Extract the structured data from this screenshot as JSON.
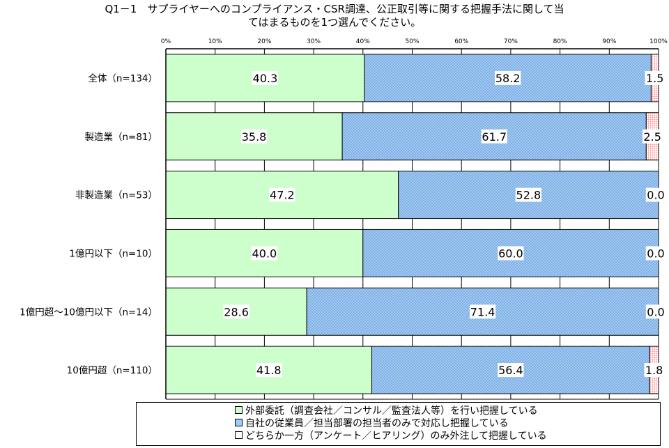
{
  "title_lines": [
    "Q1－1　サプライヤーへのコンプライアンス・CSR調達、公正取引等に関する把握手法に関して当",
    "てはまるものを1つ選んでください。"
  ],
  "chart_data": {
    "type": "bar",
    "orientation": "horizontal",
    "stacked": "percent",
    "categories": [
      "全体（n=134）",
      "製造業（n=81）",
      "非製造業（n=53）",
      "1億円以下（n=10）",
      "1億円超～10億円以下（n=14）",
      "10億円超（n=110）"
    ],
    "series": [
      {
        "name": "外部委託（調査会社／コンサル／監査法人等）を行い把握している",
        "values": [
          40.3,
          35.8,
          47.2,
          40.0,
          28.6,
          41.8
        ],
        "labels": [
          "40.3",
          "35.8",
          "47.2",
          "40.0",
          "28.6",
          "41.8"
        ],
        "color": "#ccffcc",
        "pattern": "solid"
      },
      {
        "name": "自社の従業員／担当部署の担当者のみで対応し把握している",
        "values": [
          58.2,
          61.7,
          52.8,
          60.0,
          71.4,
          56.4
        ],
        "labels": [
          "58.2",
          "61.7",
          "52.8",
          "60.0",
          "71.4",
          "56.4"
        ],
        "color": "#99ccff",
        "pattern": "crosshatch"
      },
      {
        "name": "どちらか一方（アンケート／ヒアリング）のみ外注して把握している",
        "values": [
          1.5,
          2.5,
          0.0,
          0.0,
          0.0,
          1.8
        ],
        "labels": [
          "1.5",
          "2.5",
          "0.0",
          "0.0",
          "0.0",
          "1.8"
        ],
        "color": "#ff9999",
        "pattern": "grid"
      }
    ],
    "x_ticks": [
      "0%",
      "10%",
      "20%",
      "30%",
      "40%",
      "50%",
      "60%",
      "70%",
      "80%",
      "90%",
      "100%"
    ],
    "xlim": [
      0,
      100
    ],
    "grid": true,
    "legend_position": "bottom"
  }
}
